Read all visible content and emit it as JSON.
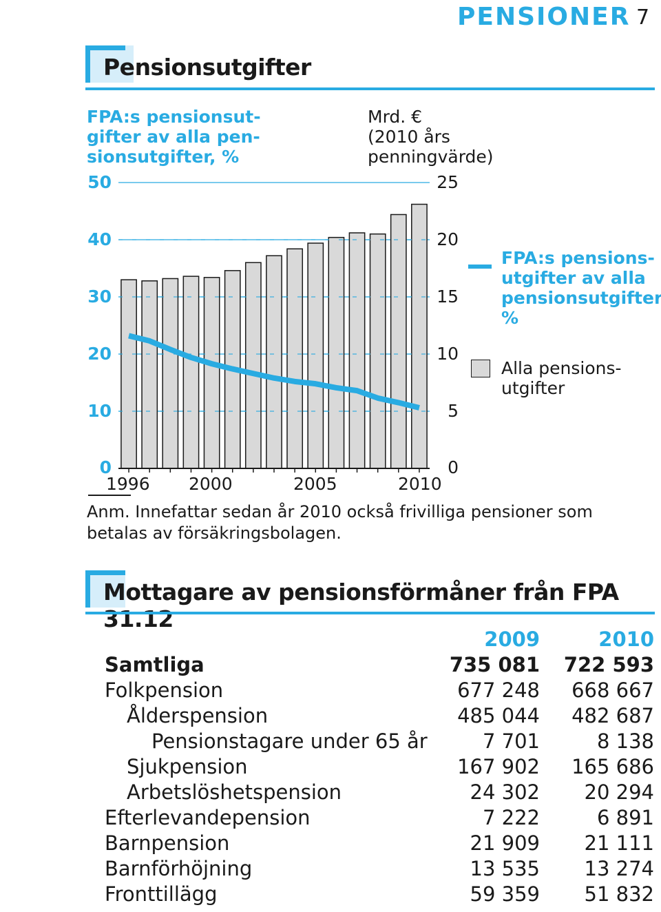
{
  "header": {
    "section": "PENSIONER",
    "page": "7"
  },
  "chart_section_title": "Pensionsutgifter",
  "table_section_title": "Mottagare av pensionsförmåner från FPA 31.12",
  "chart_data": {
    "type": "bar",
    "left_axis_title": "FPA:s pensionsutgifter av alla pensionsutgifter, %",
    "left_axis_title_lines": [
      "FPA:s pensionsut-",
      "gifter av alla pen-",
      "sionsutgifter, %"
    ],
    "right_axis_title_lines": [
      "Mrd. €",
      "(2010 års",
      "penningvärde)"
    ],
    "x": [
      1996,
      1997,
      1998,
      1999,
      2000,
      2001,
      2002,
      2003,
      2004,
      2005,
      2006,
      2007,
      2008,
      2009,
      2010
    ],
    "x_tick_labels": [
      "1996",
      "2000",
      "2005",
      "2010"
    ],
    "left_ticks": [
      "0",
      "10",
      "20",
      "30",
      "40",
      "50"
    ],
    "right_ticks": [
      "0",
      "5",
      "10",
      "15",
      "20",
      "25"
    ],
    "left_ylim": [
      0,
      50
    ],
    "right_ylim": [
      0,
      25
    ],
    "series": [
      {
        "name": "Alla pensionsutgifter",
        "name_lines": [
          "Alla pensions-",
          "utgifter"
        ],
        "axis": "right",
        "chart": "bar",
        "color": "#d9d9d9",
        "values": [
          16.5,
          16.4,
          16.6,
          16.8,
          16.7,
          17.3,
          18.0,
          18.6,
          19.2,
          19.7,
          20.2,
          20.6,
          20.5,
          22.2,
          23.1
        ]
      },
      {
        "name": "FPA:s pensionsutgifter av alla pensionsutgifter, %",
        "name_lines": [
          "FPA:s pensions-",
          "utgifter av alla",
          "pensionsutgifter,",
          "%"
        ],
        "axis": "left",
        "chart": "line",
        "color": "#29abe2",
        "values": [
          23.2,
          22.3,
          20.8,
          19.4,
          18.3,
          17.4,
          16.6,
          15.8,
          15.2,
          14.8,
          14.1,
          13.6,
          12.3,
          11.5,
          10.6
        ]
      }
    ],
    "grid": true
  },
  "note": {
    "lines": [
      "Anm. Innefattar sedan år 2010 också frivilliga pensioner som",
      "betalas av försäkringsbolagen."
    ]
  },
  "table": {
    "columns": [
      "2009",
      "2010"
    ],
    "rows": [
      {
        "label": "Samtliga",
        "level": 0,
        "bold": true,
        "v2009": "735 081",
        "v2010": "722 593"
      },
      {
        "label": "Folkpension",
        "level": 0,
        "bold": false,
        "v2009": "677 248",
        "v2010": "668 667"
      },
      {
        "label": "Ålderspension",
        "level": 1,
        "bold": false,
        "v2009": "485 044",
        "v2010": "482 687"
      },
      {
        "label": "Pensionstagare under 65 år",
        "level": 2,
        "bold": false,
        "v2009": "7 701",
        "v2010": "8 138"
      },
      {
        "label": "Sjukpension",
        "level": 1,
        "bold": false,
        "v2009": "167 902",
        "v2010": "165 686"
      },
      {
        "label": "Arbetslöshetspension",
        "level": 1,
        "bold": false,
        "v2009": "24 302",
        "v2010": "20 294"
      },
      {
        "label": "Efterlevandepension",
        "level": 0,
        "bold": false,
        "v2009": "7 222",
        "v2010": "6 891"
      },
      {
        "label": "Barnpension",
        "level": 0,
        "bold": false,
        "v2009": "21 909",
        "v2010": "21 111"
      },
      {
        "label": "Barnförhöjning",
        "level": 0,
        "bold": false,
        "v2009": "13 535",
        "v2010": "13 274"
      },
      {
        "label": "Fronttillägg",
        "level": 0,
        "bold": false,
        "v2009": "59 359",
        "v2010": "51 832"
      }
    ]
  }
}
